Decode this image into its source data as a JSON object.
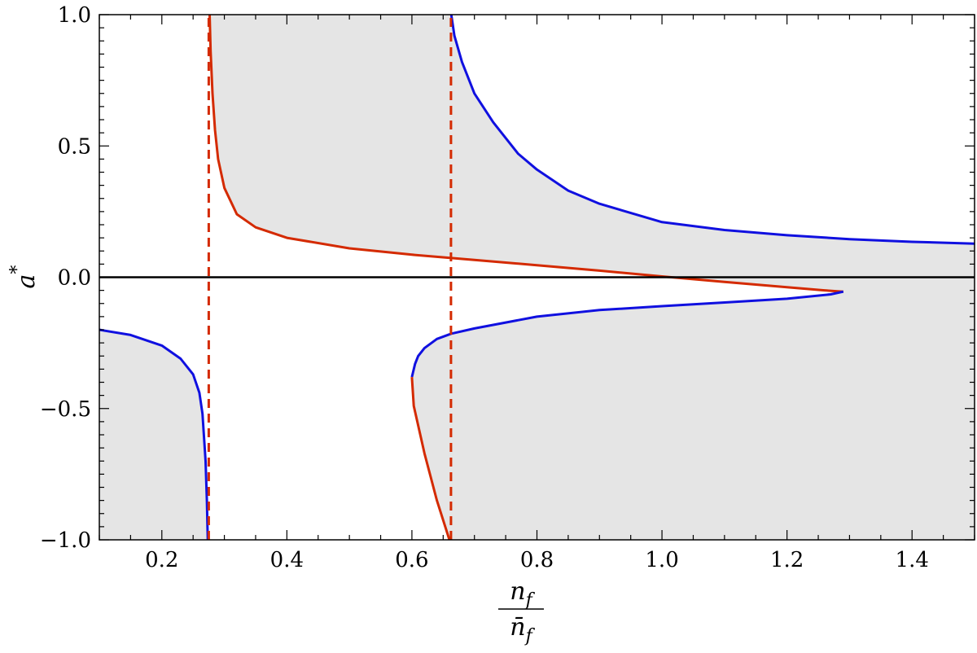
{
  "chart_data": {
    "type": "line",
    "xlabel": {
      "numerator": "n",
      "numerator_sub": "f",
      "denominator": "n̄",
      "denominator_sub": "f"
    },
    "ylabel": {
      "base": "a",
      "sup": "*"
    },
    "xlim": [
      0.1,
      1.5
    ],
    "ylim": [
      -1.0,
      1.0
    ],
    "x_ticks": [
      "0.2",
      "0.4",
      "0.6",
      "0.8",
      "1.0",
      "1.2",
      "1.4"
    ],
    "x_tick_values": [
      0.2,
      0.4,
      0.6,
      0.8,
      1.0,
      1.2,
      1.4
    ],
    "y_ticks": [
      "−1.0",
      "−0.5",
      "0.0",
      "0.5",
      "1.0"
    ],
    "y_tick_values": [
      -1.0,
      -0.5,
      0.0,
      0.5,
      1.0
    ],
    "grid": false,
    "colors": {
      "red": "#d42a00",
      "blue": "#1010e0",
      "shade": "#e5e5e5",
      "axis": "#000000"
    },
    "vertical_asymptotes": [
      0.275,
      0.6625
    ],
    "series": [
      {
        "color": "red",
        "style": "solid",
        "x": [
          0.2765,
          0.278,
          0.281,
          0.285,
          0.29,
          0.3,
          0.32,
          0.35,
          0.4,
          0.5,
          0.6,
          0.7,
          0.8,
          0.9,
          1.0,
          1.1,
          1.2,
          1.26,
          1.29
        ],
        "y": [
          1.0,
          0.86,
          0.7,
          0.56,
          0.45,
          0.34,
          0.24,
          0.19,
          0.15,
          0.11,
          0.086,
          0.066,
          0.046,
          0.025,
          0.003,
          -0.018,
          -0.038,
          -0.05,
          -0.055
        ]
      },
      {
        "color": "blue",
        "style": "solid",
        "x": [
          1.29,
          1.27,
          1.2,
          1.1,
          1.0,
          0.9,
          0.8,
          0.7,
          0.663,
          0.64,
          0.62,
          0.61,
          0.605,
          0.6
        ],
        "y": [
          -0.055,
          -0.065,
          -0.082,
          -0.096,
          -0.11,
          -0.125,
          -0.15,
          -0.195,
          -0.215,
          -0.235,
          -0.27,
          -0.3,
          -0.33,
          -0.38
        ]
      },
      {
        "color": "red",
        "style": "solid",
        "x": [
          0.6,
          0.603,
          0.62,
          0.64,
          0.66
        ],
        "y": [
          -0.38,
          -0.49,
          -0.67,
          -0.85,
          -1.0
        ]
      },
      {
        "color": "blue",
        "style": "solid",
        "x": [
          0.663,
          0.668,
          0.68,
          0.7,
          0.73,
          0.77,
          0.8,
          0.85,
          0.9,
          1.0,
          1.1,
          1.2,
          1.3,
          1.4,
          1.5
        ],
        "y": [
          1.0,
          0.92,
          0.82,
          0.7,
          0.59,
          0.47,
          0.41,
          0.33,
          0.28,
          0.21,
          0.18,
          0.16,
          0.145,
          0.135,
          0.128
        ]
      },
      {
        "color": "blue",
        "style": "solid",
        "x": [
          0.1,
          0.15,
          0.2,
          0.23,
          0.25,
          0.26,
          0.265,
          0.27,
          0.272,
          0.2735
        ],
        "y": [
          -0.2,
          -0.22,
          -0.26,
          -0.31,
          -0.37,
          -0.44,
          -0.52,
          -0.7,
          -0.85,
          -1.0
        ]
      },
      {
        "color": "red",
        "style": "dashed",
        "x": [
          0.275,
          0.275
        ],
        "y": [
          -1.0,
          1.0
        ]
      },
      {
        "color": "red",
        "style": "dashed",
        "x": [
          0.6625,
          0.6625
        ],
        "y": [
          -1.0,
          1.0
        ]
      },
      {
        "color": "axis",
        "style": "solid",
        "x": [
          0.1,
          1.5
        ],
        "y": [
          0.0,
          0.0
        ]
      }
    ],
    "shaded_regions": [
      {
        "x": [
          0.2765,
          0.278,
          0.281,
          0.285,
          0.29,
          0.3,
          0.32,
          0.35,
          0.4,
          0.5,
          0.6,
          0.6625,
          0.6625,
          0.2765
        ],
        "y": [
          1.0,
          0.86,
          0.7,
          0.56,
          0.45,
          0.34,
          0.24,
          0.19,
          0.15,
          0.11,
          0.086,
          0.076,
          1.0,
          1.0
        ]
      },
      {
        "x": [
          0.6625,
          0.7,
          0.8,
          0.9,
          1.0,
          1.1,
          1.2,
          1.29,
          1.5,
          1.5,
          1.4,
          1.3,
          1.2,
          1.1,
          1.0,
          0.9,
          0.85,
          0.8,
          0.77,
          0.73,
          0.7,
          0.68,
          0.668,
          0.663
        ],
        "y": [
          0.076,
          0.066,
          0.046,
          0.025,
          0.003,
          -0.018,
          -0.038,
          -0.055,
          -0.055,
          0.128,
          0.135,
          0.145,
          0.16,
          0.18,
          0.21,
          0.28,
          0.33,
          0.41,
          0.47,
          0.59,
          0.7,
          0.82,
          0.92,
          1.0
        ]
      },
      {
        "x": [
          0.66,
          0.64,
          0.62,
          0.603,
          0.6,
          0.605,
          0.61,
          0.62,
          0.64,
          0.663,
          0.7,
          0.8,
          0.9,
          1.0,
          1.1,
          1.2,
          1.27,
          1.29,
          1.5,
          1.5
        ],
        "y": [
          -1.0,
          -0.85,
          -0.67,
          -0.49,
          -0.38,
          -0.33,
          -0.3,
          -0.27,
          -0.235,
          -0.215,
          -0.195,
          -0.15,
          -0.125,
          -0.11,
          -0.096,
          -0.082,
          -0.065,
          -0.055,
          -0.055,
          -1.0
        ]
      },
      {
        "x": [
          0.1,
          0.15,
          0.2,
          0.23,
          0.25,
          0.26,
          0.265,
          0.27,
          0.272,
          0.2735,
          0.1
        ],
        "y": [
          -0.2,
          -0.22,
          -0.26,
          -0.31,
          -0.37,
          -0.44,
          -0.52,
          -0.7,
          -0.85,
          -1.0,
          -1.0
        ]
      }
    ]
  }
}
